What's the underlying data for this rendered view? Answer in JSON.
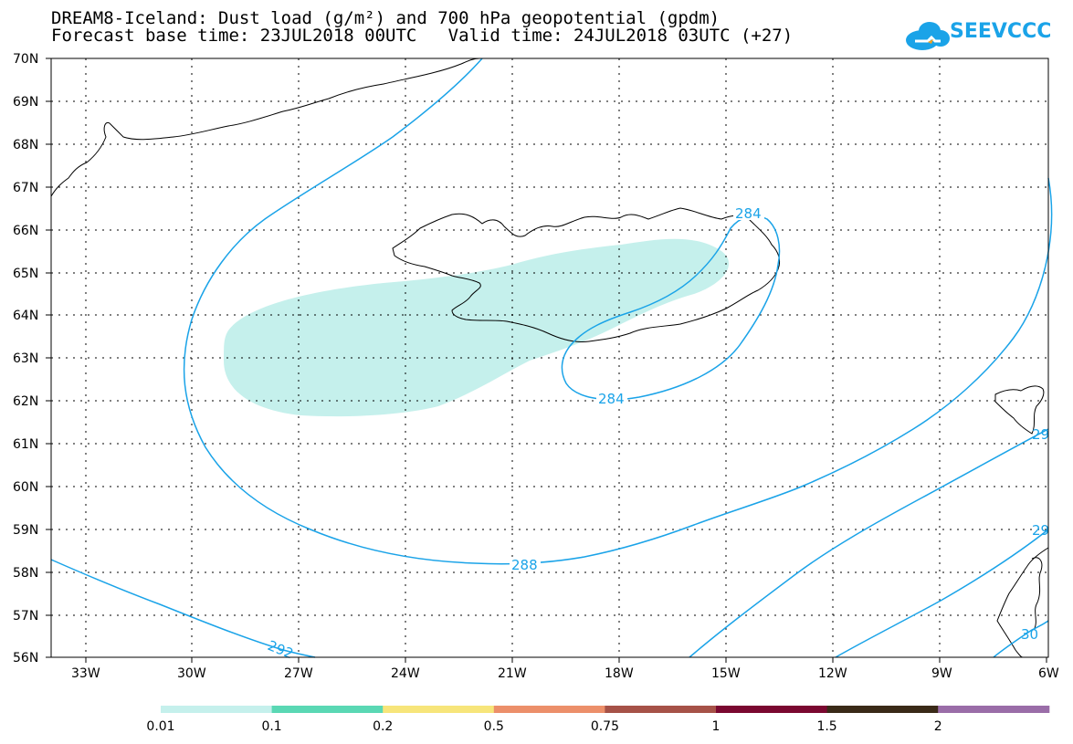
{
  "header": {
    "title_line1": "DREAM8-Iceland: Dust load (g/m²) and 700 hPa geopotential (gpdm)",
    "title_line2": "Forecast base time: 23JUL2018 00UTC   Valid time: 24JUL2018 03UTC (+27)"
  },
  "logo": {
    "text": "SEEVCCC",
    "color": "#1aa3e8"
  },
  "map": {
    "lat_labels": [
      "70N",
      "69N",
      "68N",
      "67N",
      "66N",
      "65N",
      "64N",
      "63N",
      "62N",
      "61N",
      "60N",
      "59N",
      "58N",
      "57N",
      "56N"
    ],
    "lon_labels": [
      "33W",
      "30W",
      "27W",
      "24W",
      "21W",
      "18W",
      "15W",
      "12W",
      "9W",
      "6W"
    ],
    "contour_color": "#1aa3e8",
    "dust_color": "#c5f0ec",
    "contour_labels": [
      "284",
      "284",
      "288",
      "292",
      "29",
      "29",
      "30"
    ]
  },
  "colorbar": {
    "colors": [
      "#c5f0ec",
      "#5ad8b4",
      "#f7e57a",
      "#ec8f6a",
      "#a65248",
      "#7a0830",
      "#3a2a18",
      "#9a6da8"
    ],
    "labels": [
      "0.01",
      "0.1",
      "0.2",
      "0.5",
      "0.75",
      "1",
      "1.5",
      "2"
    ]
  }
}
